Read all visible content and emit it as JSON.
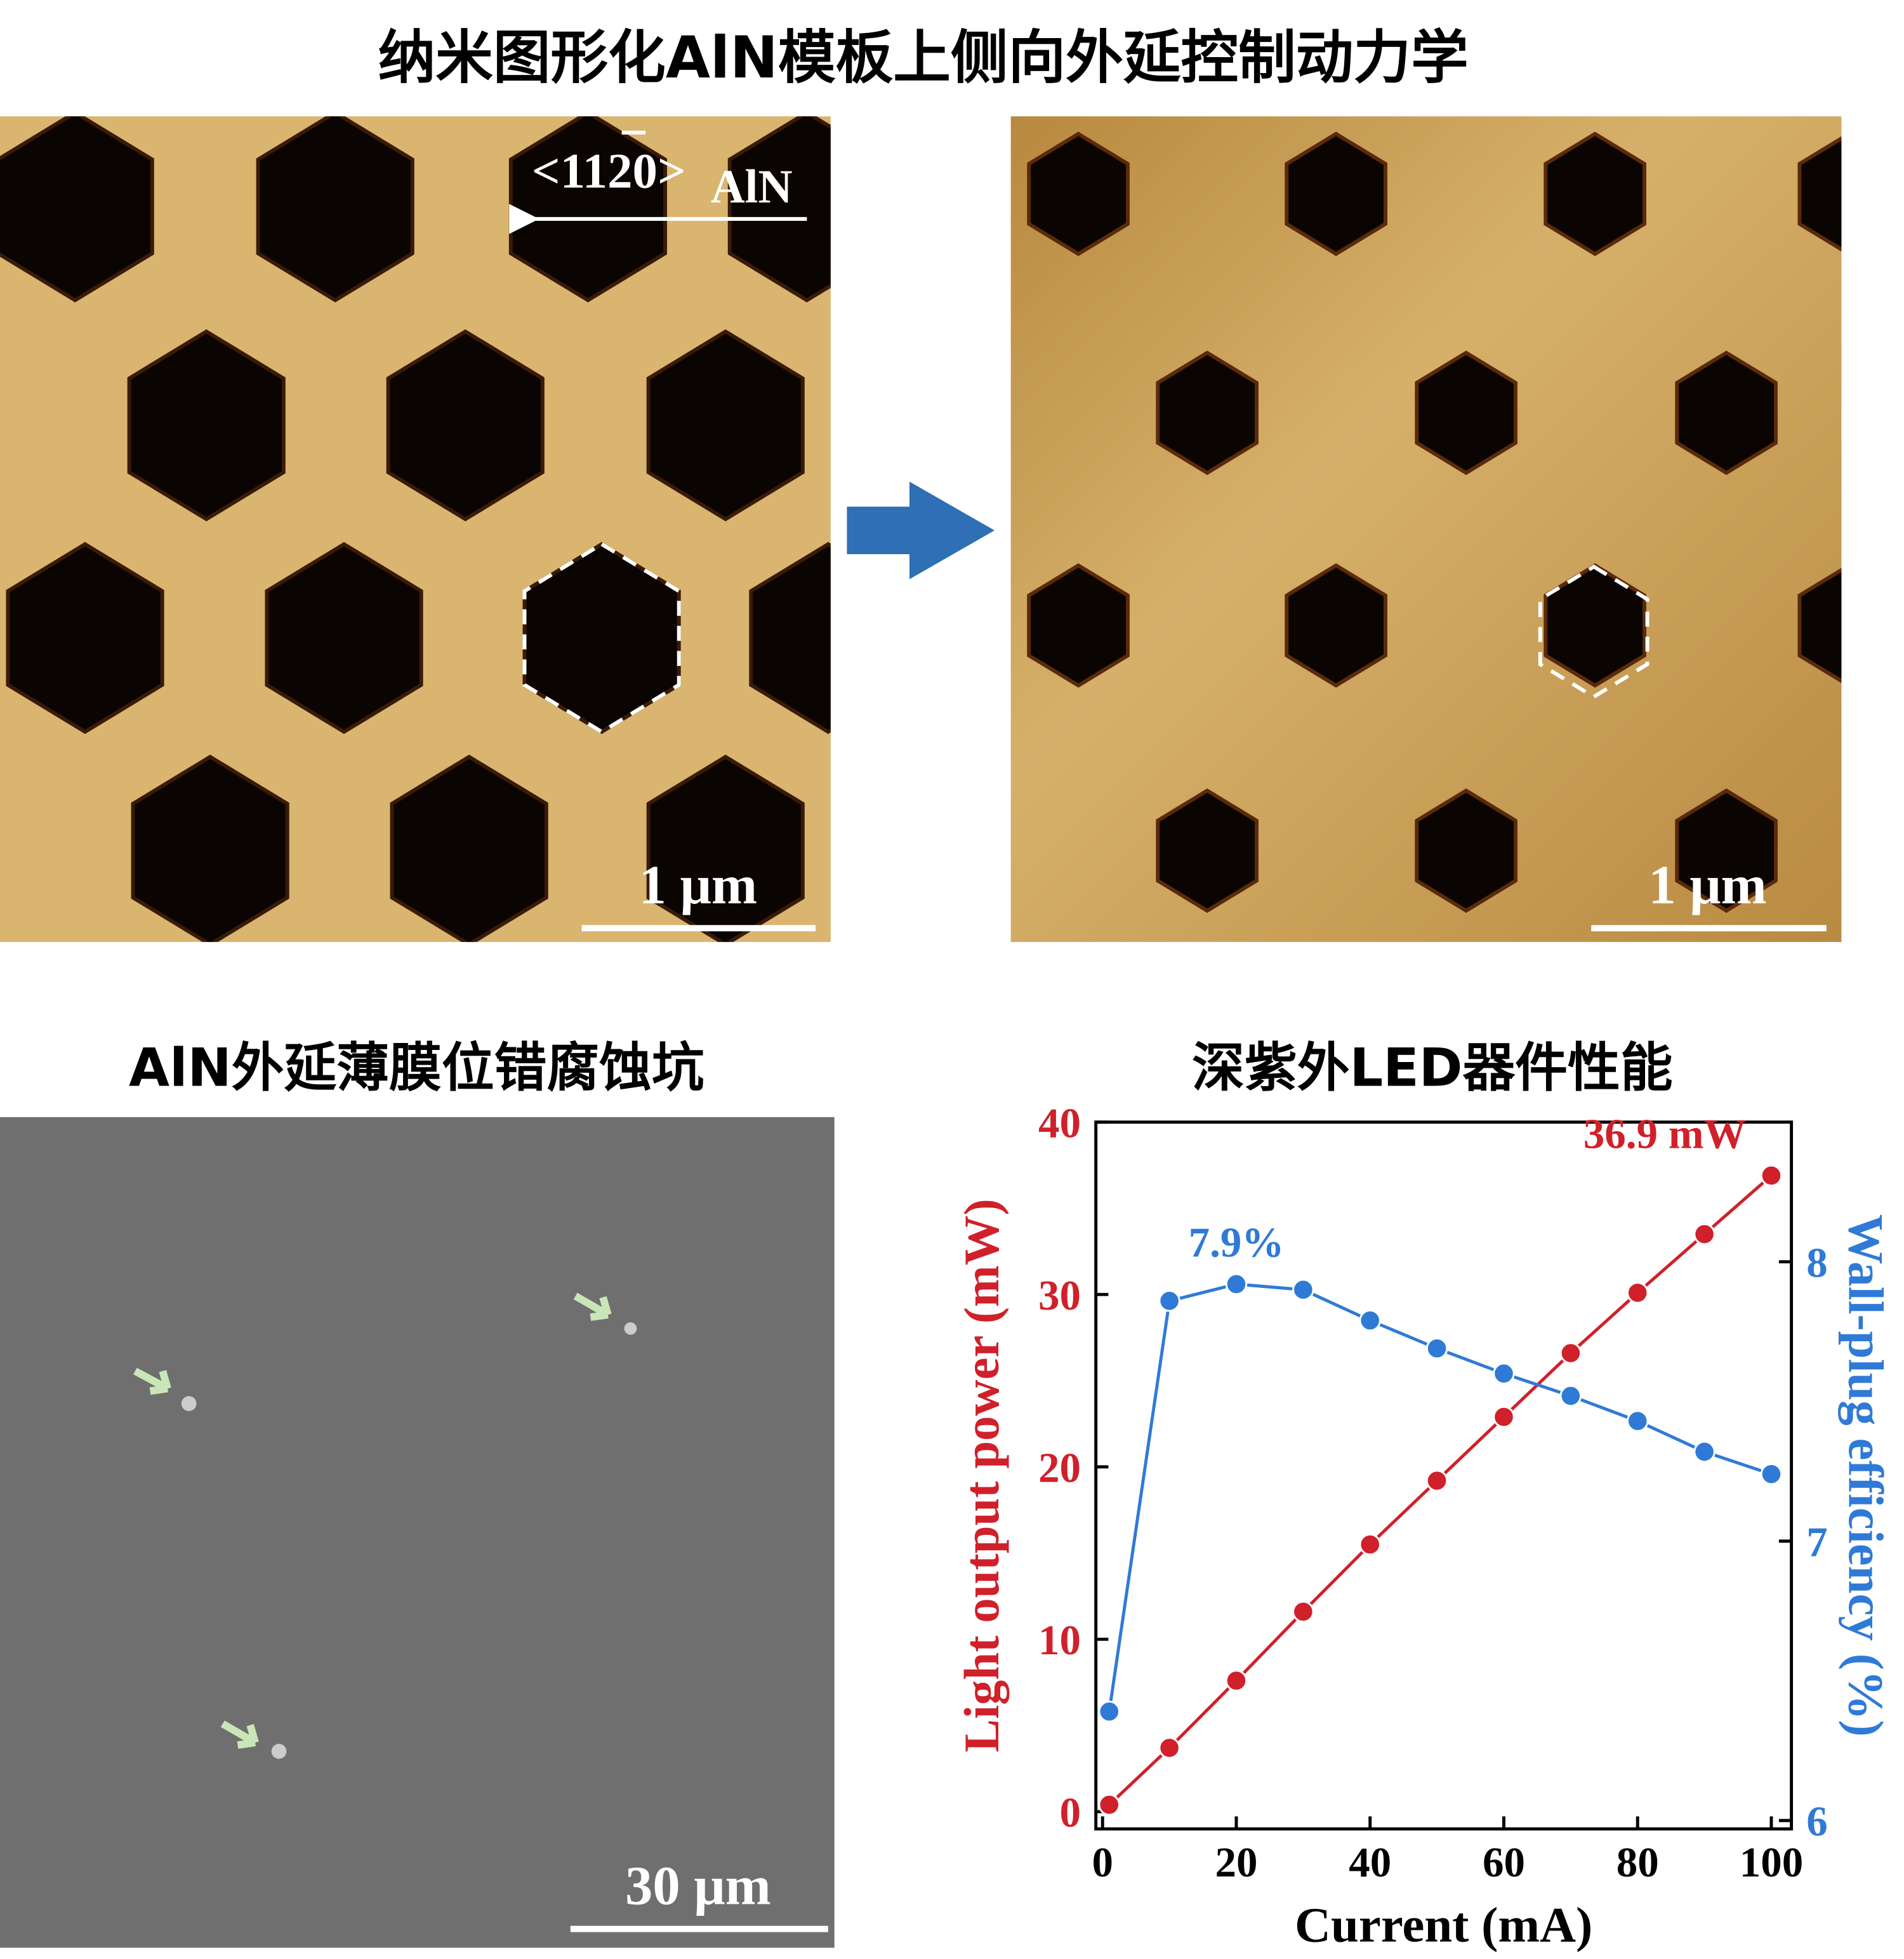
{
  "title": "纳米图形化AlN模板上侧向外延控制动力学",
  "panels": {
    "afm_before": {
      "direction_label": "<1120>",
      "direction_subscript": "AlN",
      "scale_bar": "1 μm"
    },
    "afm_after": {
      "scale_bar": "1 μm"
    },
    "sem": {
      "title": "AlN外延薄膜位错腐蚀坑",
      "scale_bar": "30 μm"
    }
  },
  "chart_data": {
    "type": "line",
    "title": "深紫外LED器件性能",
    "x_label": "Current (mA)",
    "y_label": "Light output power (mW)",
    "y2_label": "Wall-plug efficiency (%)",
    "x": [
      1,
      10,
      20,
      30,
      40,
      50,
      60,
      70,
      80,
      90,
      100
    ],
    "series": [
      {
        "name": "Light output power",
        "color": "#d0202a",
        "values": [
          0.4,
          3.7,
          7.6,
          11.6,
          15.5,
          19.2,
          22.9,
          26.6,
          30.1,
          33.5,
          36.9
        ],
        "value_labels": [
          null,
          null,
          null,
          null,
          null,
          null,
          null,
          null,
          null,
          null,
          "36.9 mW"
        ]
      },
      {
        "name": "Wall-plug efficiency",
        "color": "#2f7ad6",
        "axis": "y2",
        "values": [
          6.39,
          7.86,
          7.92,
          7.9,
          7.79,
          7.69,
          7.6,
          7.52,
          7.43,
          7.32,
          7.24
        ],
        "value_labels": [
          null,
          null,
          "7.9%",
          null,
          null,
          null,
          null,
          null,
          null,
          null,
          null
        ]
      }
    ],
    "xlim": [
      -1,
      103
    ],
    "xticks": [
      0,
      20,
      40,
      60,
      80,
      100
    ],
    "ylim": [
      -1,
      40
    ],
    "yticks": [
      0,
      10,
      20,
      30,
      40
    ],
    "y2lim": [
      5.97,
      8.5
    ],
    "y2ticks": [
      6,
      7,
      8
    ],
    "grid": false
  }
}
